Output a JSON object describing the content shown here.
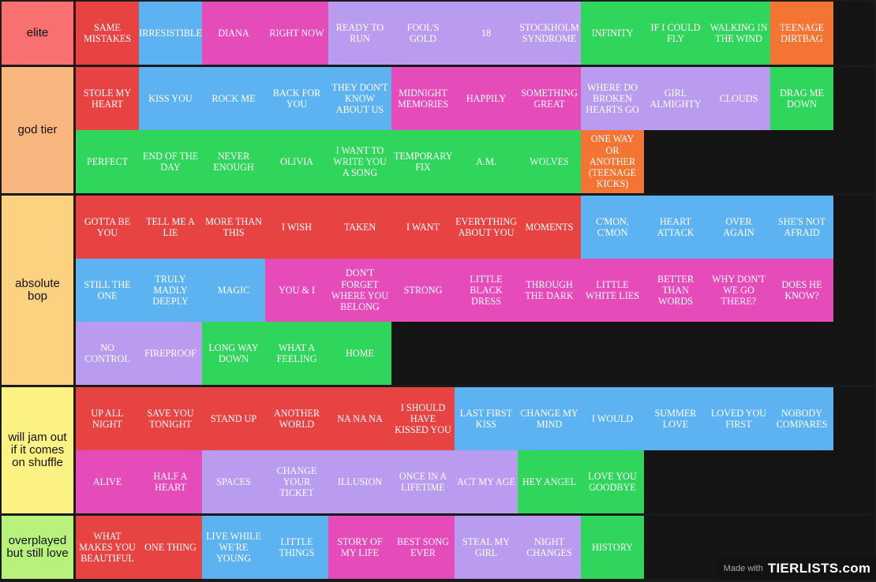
{
  "colors": {
    "red": "#e84343",
    "blue": "#5db2f2",
    "pink": "#e54bb9",
    "purple": "#b99bef",
    "green": "#2fd65b",
    "orange": "#f37433"
  },
  "tiers": [
    {
      "label": "elite",
      "color": "#f87070",
      "items": [
        {
          "text": "SAME MISTAKES",
          "color": "red"
        },
        {
          "text": "IRRESISTIBLE",
          "color": "blue"
        },
        {
          "text": "DIANA",
          "color": "pink"
        },
        {
          "text": "RIGHT NOW",
          "color": "pink"
        },
        {
          "text": "READY TO RUN",
          "color": "purple"
        },
        {
          "text": "FOOL'S GOLD",
          "color": "purple"
        },
        {
          "text": "18",
          "color": "purple"
        },
        {
          "text": "STOCKHOLM SYNDROME",
          "color": "purple"
        },
        {
          "text": "INFINITY",
          "color": "green"
        },
        {
          "text": "IF I COULD FLY",
          "color": "green"
        },
        {
          "text": "WALKING IN THE WIND",
          "color": "green"
        },
        {
          "text": "TEENAGE DIRTBAG",
          "color": "orange"
        }
      ]
    },
    {
      "label": "god tier",
      "color": "#f9b77f",
      "items": [
        {
          "text": "STOLE MY HEART",
          "color": "red"
        },
        {
          "text": "KISS YOU",
          "color": "blue"
        },
        {
          "text": "ROCK ME",
          "color": "blue"
        },
        {
          "text": "BACK FOR YOU",
          "color": "blue"
        },
        {
          "text": "THEY DON'T KNOW ABOUT US",
          "color": "blue"
        },
        {
          "text": "MIDNIGHT MEMORIES",
          "color": "pink"
        },
        {
          "text": "HAPPILY",
          "color": "pink"
        },
        {
          "text": "SOMETHING GREAT",
          "color": "pink"
        },
        {
          "text": "WHERE DO BROKEN HEARTS GO",
          "color": "purple"
        },
        {
          "text": "GIRL ALMIGHTY",
          "color": "purple"
        },
        {
          "text": "CLOUDS",
          "color": "purple"
        },
        {
          "text": "DRAG ME DOWN",
          "color": "green"
        },
        {
          "text": "PERFECT",
          "color": "green"
        },
        {
          "text": "END OF THE DAY",
          "color": "green"
        },
        {
          "text": "NEVER ENOUGH",
          "color": "green"
        },
        {
          "text": "OLIVIA",
          "color": "green"
        },
        {
          "text": "I WANT TO WRITE YOU A SONG",
          "color": "green"
        },
        {
          "text": "TEMPORARY FIX",
          "color": "green"
        },
        {
          "text": "A.M.",
          "color": "green"
        },
        {
          "text": "WOLVES",
          "color": "green"
        },
        {
          "text": "ONE WAY OR ANOTHER (TEENAGE KICKS)",
          "color": "orange"
        }
      ]
    },
    {
      "label": "absolute bop",
      "color": "#fbd380",
      "items": [
        {
          "text": "GOTTA BE YOU",
          "color": "red"
        },
        {
          "text": "TELL ME A LIE",
          "color": "red"
        },
        {
          "text": "MORE THAN THIS",
          "color": "red"
        },
        {
          "text": "I WISH",
          "color": "red"
        },
        {
          "text": "TAKEN",
          "color": "red"
        },
        {
          "text": "I WANT",
          "color": "red"
        },
        {
          "text": "EVERYTHING ABOUT YOU",
          "color": "red"
        },
        {
          "text": "MOMENTS",
          "color": "red"
        },
        {
          "text": "C'MON, C'MON",
          "color": "blue"
        },
        {
          "text": "HEART ATTACK",
          "color": "blue"
        },
        {
          "text": "OVER AGAIN",
          "color": "blue"
        },
        {
          "text": "SHE'S NOT AFRAID",
          "color": "blue"
        },
        {
          "text": "STILL THE ONE",
          "color": "blue"
        },
        {
          "text": "TRULY MADLY DEEPLY",
          "color": "blue"
        },
        {
          "text": "MAGIC",
          "color": "blue"
        },
        {
          "text": "YOU & I",
          "color": "pink"
        },
        {
          "text": "DON'T FORGET WHERE YOU BELONG",
          "color": "pink"
        },
        {
          "text": "STRONG",
          "color": "pink"
        },
        {
          "text": "LITTLE BLACK DRESS",
          "color": "pink"
        },
        {
          "text": "THROUGH THE DARK",
          "color": "pink"
        },
        {
          "text": "LITTLE WHITE LIES",
          "color": "pink"
        },
        {
          "text": "BETTER THAN WORDS",
          "color": "pink"
        },
        {
          "text": "WHY DON'T WE GO THERE?",
          "color": "pink"
        },
        {
          "text": "DOES HE KNOW?",
          "color": "pink"
        },
        {
          "text": "NO CONTROL",
          "color": "purple"
        },
        {
          "text": "FIREPROOF",
          "color": "purple"
        },
        {
          "text": "LONG WAY DOWN",
          "color": "green"
        },
        {
          "text": "WHAT A FEELING",
          "color": "green"
        },
        {
          "text": "HOME",
          "color": "green"
        }
      ]
    },
    {
      "label": "will jam out if it comes on shuffle",
      "color": "#fcf283",
      "items": [
        {
          "text": "UP ALL NIGHT",
          "color": "red"
        },
        {
          "text": "SAVE YOU TONIGHT",
          "color": "red"
        },
        {
          "text": "STAND UP",
          "color": "red"
        },
        {
          "text": "ANOTHER WORLD",
          "color": "red"
        },
        {
          "text": "NA NA NA",
          "color": "red"
        },
        {
          "text": "I SHOULD HAVE KISSED YOU",
          "color": "red"
        },
        {
          "text": "LAST FIRST KISS",
          "color": "blue"
        },
        {
          "text": "CHANGE MY MIND",
          "color": "blue"
        },
        {
          "text": "I WOULD",
          "color": "blue"
        },
        {
          "text": "SUMMER LOVE",
          "color": "blue"
        },
        {
          "text": "LOVED YOU FIRST",
          "color": "blue"
        },
        {
          "text": "NOBODY COMPARES",
          "color": "blue"
        },
        {
          "text": "ALIVE",
          "color": "pink"
        },
        {
          "text": "HALF A HEART",
          "color": "pink"
        },
        {
          "text": "SPACES",
          "color": "purple"
        },
        {
          "text": "CHANGE YOUR TICKET",
          "color": "purple"
        },
        {
          "text": "ILLUSION",
          "color": "purple"
        },
        {
          "text": "ONCE IN A LIFETIME",
          "color": "purple"
        },
        {
          "text": "ACT MY AGE",
          "color": "purple"
        },
        {
          "text": "HEY ANGEL",
          "color": "green"
        },
        {
          "text": "LOVE YOU GOODBYE",
          "color": "green"
        }
      ]
    },
    {
      "label": "overplayed but still love",
      "color": "#b8f27d",
      "items": [
        {
          "text": "WHAT MAKES YOU BEAUTIFUL",
          "color": "red"
        },
        {
          "text": "ONE THING",
          "color": "red"
        },
        {
          "text": "LIVE WHILE WE'RE YOUNG",
          "color": "blue"
        },
        {
          "text": "LITTLE THINGS",
          "color": "blue"
        },
        {
          "text": "STORY OF MY LIFE",
          "color": "pink"
        },
        {
          "text": "BEST SONG EVER",
          "color": "pink"
        },
        {
          "text": "STEAL MY GIRL",
          "color": "purple"
        },
        {
          "text": "NIGHT CHANGES",
          "color": "purple"
        },
        {
          "text": "HISTORY",
          "color": "green"
        }
      ]
    }
  ],
  "badge": {
    "made_with": "Made with",
    "brand": "TIERLISTS.com"
  }
}
